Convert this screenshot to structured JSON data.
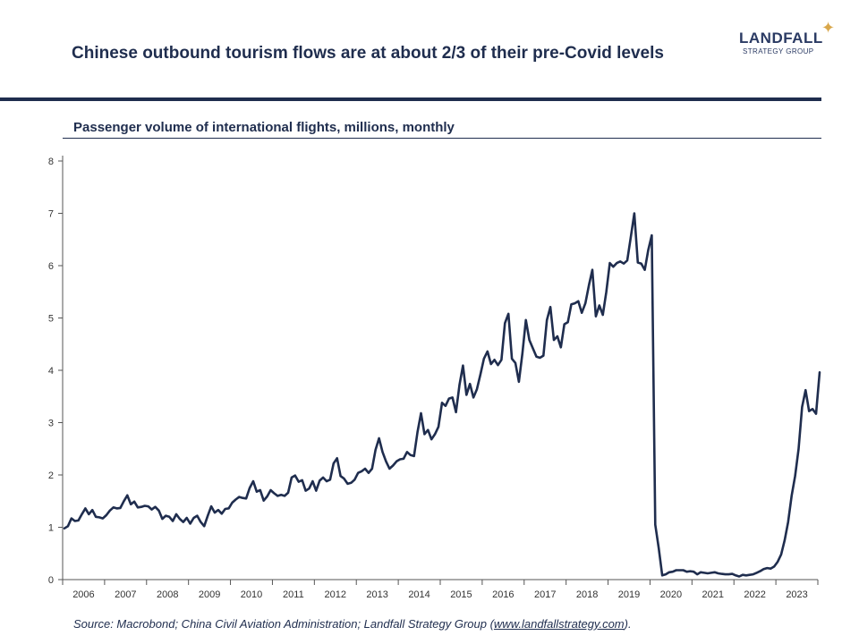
{
  "header": {
    "title": "Chinese outbound tourism flows are at about 2/3 of their pre-Covid levels",
    "logo_main": "LANDFALL",
    "logo_sub": "STRATEGY GROUP",
    "logo_star": "✦"
  },
  "footer": {
    "source_prefix": "Source: Macrobond; China Civil Aviation Administration; Landfall Strategy Group (",
    "source_link": "www.landfallstrategy.com",
    "source_suffix": ")."
  },
  "colors": {
    "navy": "#1f2d4e",
    "accent": "#d9a74a"
  },
  "chart_data": {
    "type": "line",
    "title": "Passenger volume of international flights, millions, monthly",
    "xlabel": "",
    "ylabel": "",
    "ylim": [
      0,
      8
    ],
    "yticks": [
      0,
      1,
      2,
      3,
      4,
      5,
      6,
      7,
      8
    ],
    "year_labels": [
      "2006",
      "2007",
      "2008",
      "2009",
      "2010",
      "2011",
      "2012",
      "2013",
      "2014",
      "2015",
      "2016",
      "2017",
      "2018",
      "2019",
      "2020",
      "2021",
      "2022",
      "2023"
    ],
    "start": "2006-01",
    "series": [
      {
        "name": "Passenger volume of international flights",
        "values": [
          0.98,
          1.02,
          1.17,
          1.12,
          1.13,
          1.25,
          1.36,
          1.25,
          1.33,
          1.2,
          1.19,
          1.17,
          1.23,
          1.32,
          1.38,
          1.36,
          1.37,
          1.5,
          1.61,
          1.44,
          1.49,
          1.38,
          1.39,
          1.41,
          1.4,
          1.34,
          1.39,
          1.32,
          1.16,
          1.22,
          1.2,
          1.12,
          1.25,
          1.16,
          1.1,
          1.18,
          1.07,
          1.18,
          1.22,
          1.1,
          1.02,
          1.22,
          1.4,
          1.28,
          1.33,
          1.26,
          1.35,
          1.36,
          1.47,
          1.53,
          1.58,
          1.56,
          1.55,
          1.75,
          1.88,
          1.68,
          1.71,
          1.51,
          1.59,
          1.71,
          1.65,
          1.6,
          1.62,
          1.6,
          1.66,
          1.95,
          1.99,
          1.87,
          1.9,
          1.7,
          1.74,
          1.88,
          1.7,
          1.89,
          1.95,
          1.88,
          1.91,
          2.22,
          2.32,
          1.98,
          1.93,
          1.83,
          1.85,
          1.91,
          2.04,
          2.07,
          2.12,
          2.04,
          2.12,
          2.48,
          2.7,
          2.44,
          2.26,
          2.12,
          2.18,
          2.26,
          2.3,
          2.31,
          2.44,
          2.38,
          2.36,
          2.82,
          3.18,
          2.78,
          2.86,
          2.68,
          2.78,
          2.92,
          3.38,
          3.32,
          3.46,
          3.48,
          3.2,
          3.72,
          4.09,
          3.53,
          3.74,
          3.48,
          3.64,
          3.92,
          4.22,
          4.36,
          4.12,
          4.2,
          4.1,
          4.2,
          4.9,
          5.08,
          4.22,
          4.14,
          3.78,
          4.32,
          4.96,
          4.58,
          4.42,
          4.26,
          4.24,
          4.28,
          4.96,
          5.21,
          4.58,
          4.65,
          4.44,
          4.88,
          4.92,
          5.26,
          5.28,
          5.32,
          5.1,
          5.28,
          5.62,
          5.92,
          5.03,
          5.24,
          5.06,
          5.5,
          6.05,
          5.98,
          6.05,
          6.08,
          6.04,
          6.1,
          6.55,
          7.0,
          6.06,
          6.04,
          5.92,
          6.3,
          6.58,
          1.05,
          0.6,
          0.08,
          0.1,
          0.14,
          0.15,
          0.18,
          0.18,
          0.18,
          0.15,
          0.16,
          0.15,
          0.1,
          0.14,
          0.13,
          0.12,
          0.13,
          0.14,
          0.12,
          0.11,
          0.1,
          0.1,
          0.11,
          0.08,
          0.06,
          0.09,
          0.08,
          0.09,
          0.1,
          0.13,
          0.16,
          0.2,
          0.22,
          0.21,
          0.25,
          0.34,
          0.48,
          0.75,
          1.1,
          1.6,
          1.98,
          2.5,
          3.3,
          3.62,
          3.22,
          3.26,
          3.17,
          3.96
        ]
      }
    ]
  }
}
